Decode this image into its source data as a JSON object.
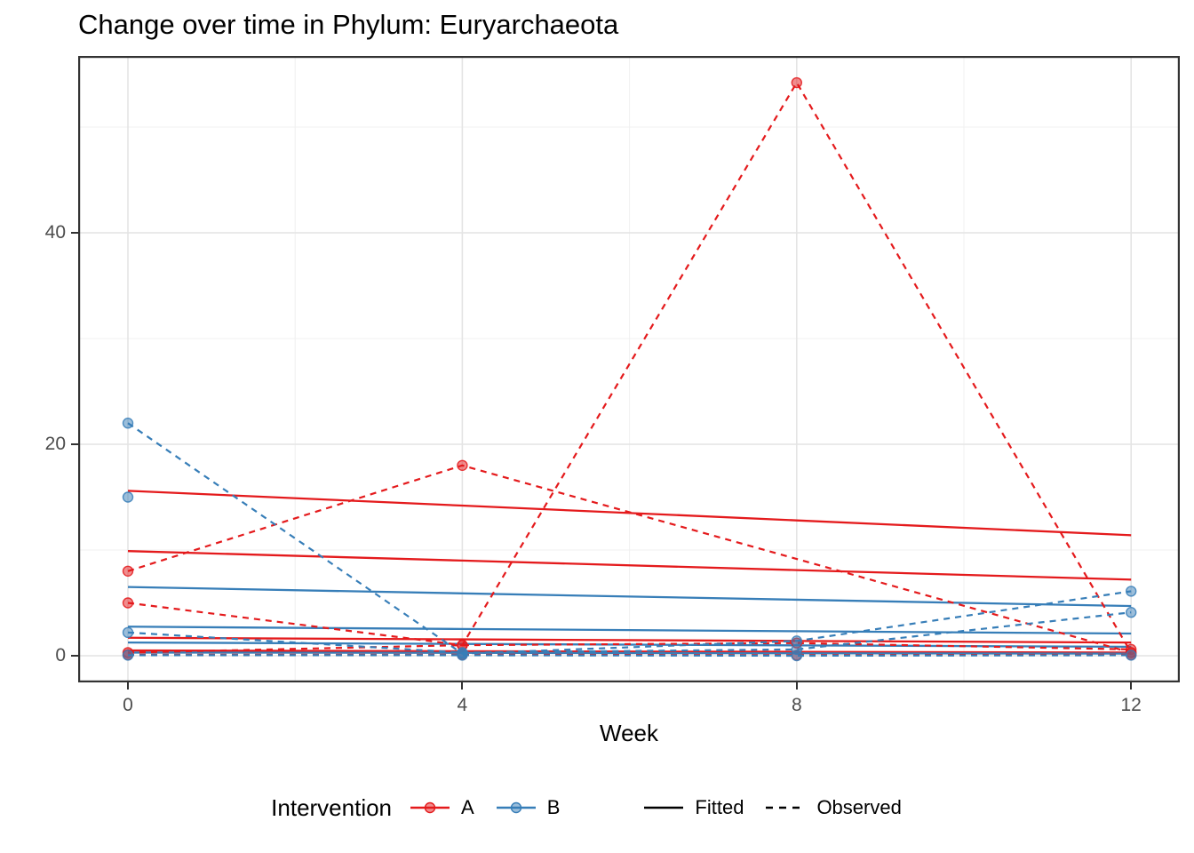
{
  "title": "Change over time in Phylum: Euryarchaeota",
  "x_axis": {
    "label": "Week"
  },
  "legend": {
    "title": "Intervention",
    "groups": [
      {
        "label": "A",
        "color": "#E41A1C"
      },
      {
        "label": "B",
        "color": "#377EB8"
      }
    ],
    "linetypes": [
      {
        "label": "Fitted",
        "dash": "solid"
      },
      {
        "label": "Observed",
        "dash": "dashed"
      }
    ]
  },
  "colors": {
    "A": "#E41A1C",
    "B": "#377EB8",
    "grid_major": "#e4e4e4",
    "grid_minor": "#f0f0f0",
    "panel_border": "#333333",
    "tick_label": "#4d4d4d",
    "key_line": "#000000"
  },
  "chart_data": {
    "type": "line",
    "title": "Change over time in Phylum: Euryarchaeota",
    "xlabel": "Week",
    "ylabel": "",
    "x": [
      0,
      4,
      8,
      12
    ],
    "x_ticks": [
      0,
      4,
      8,
      12
    ],
    "x_minor": [
      2,
      6,
      10
    ],
    "y_ticks": [
      0,
      20,
      40
    ],
    "y_minor": [
      10,
      30,
      50
    ],
    "xlim": [
      -0.6,
      12.6
    ],
    "ylim": [
      -2.5,
      56.7
    ],
    "grid": true,
    "legend_position": "bottom",
    "series": [
      {
        "name": "A-fitted-1",
        "group": "A",
        "style": "fitted",
        "values": [
          15.6,
          14.2,
          12.8,
          11.4
        ]
      },
      {
        "name": "A-fitted-2",
        "group": "A",
        "style": "fitted",
        "values": [
          9.9,
          9.0,
          8.1,
          7.2
        ]
      },
      {
        "name": "A-fitted-3",
        "group": "A",
        "style": "fitted",
        "values": [
          1.7,
          1.55,
          1.4,
          1.25
        ]
      },
      {
        "name": "A-fitted-4",
        "group": "A",
        "style": "fitted",
        "values": [
          0.5,
          0.43,
          0.37,
          0.3
        ]
      },
      {
        "name": "B-fitted-1",
        "group": "B",
        "style": "fitted",
        "values": [
          6.5,
          5.9,
          5.3,
          4.7
        ]
      },
      {
        "name": "B-fitted-2",
        "group": "B",
        "style": "fitted",
        "values": [
          2.75,
          2.53,
          2.32,
          2.1
        ]
      },
      {
        "name": "B-fitted-3",
        "group": "B",
        "style": "fitted",
        "values": [
          1.25,
          1.12,
          0.98,
          0.85
        ]
      },
      {
        "name": "B-fitted-4",
        "group": "B",
        "style": "fitted",
        "values": [
          0.3,
          0.27,
          0.23,
          0.2
        ]
      },
      {
        "name": "A-observed-1",
        "group": "A",
        "style": "observed",
        "values": [
          8,
          18,
          null,
          0.3
        ]
      },
      {
        "name": "A-observed-2",
        "group": "A",
        "style": "observed",
        "values": [
          5,
          1,
          54.2,
          0.3
        ]
      },
      {
        "name": "A-observed-3",
        "group": "A",
        "style": "observed",
        "values": [
          0.3,
          1.0,
          1.2,
          0.6
        ]
      },
      {
        "name": "A-observed-4",
        "group": "A",
        "style": "observed",
        "values": [
          0.1,
          0.1,
          0.05,
          0.1
        ]
      },
      {
        "name": "B-observed-1",
        "group": "B",
        "style": "observed",
        "values": [
          22,
          0.2,
          1.4,
          6.1
        ]
      },
      {
        "name": "B-observed-2",
        "group": "B",
        "style": "observed",
        "values": [
          2.2,
          0.3,
          0.6,
          4.1
        ]
      },
      {
        "name": "B-observed-3",
        "group": "B",
        "style": "observed",
        "values": [
          15,
          null,
          null,
          null
        ]
      },
      {
        "name": "B-observed-4",
        "group": "B",
        "style": "observed",
        "values": [
          0.05,
          0.05,
          0.0,
          0.05
        ]
      }
    ]
  }
}
